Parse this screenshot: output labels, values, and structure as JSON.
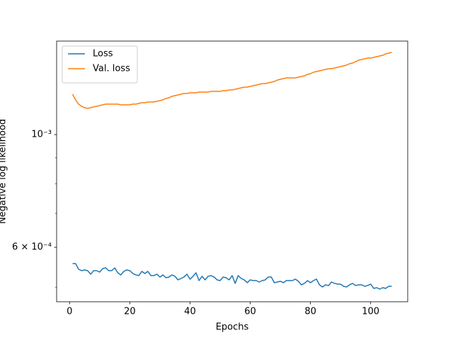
{
  "chart_data": {
    "type": "line",
    "xlabel": "Epochs",
    "ylabel": "Negative log likelihood",
    "x": [
      1,
      2,
      3,
      4,
      5,
      6,
      7,
      8,
      9,
      10,
      11,
      12,
      13,
      14,
      15,
      16,
      17,
      18,
      19,
      20,
      21,
      22,
      23,
      24,
      25,
      26,
      27,
      28,
      29,
      30,
      31,
      32,
      33,
      34,
      35,
      36,
      37,
      38,
      39,
      40,
      41,
      42,
      43,
      44,
      45,
      46,
      47,
      48,
      49,
      50,
      51,
      52,
      53,
      54,
      55,
      56,
      57,
      58,
      59,
      60,
      61,
      62,
      63,
      64,
      65,
      66,
      67,
      68,
      69,
      70,
      71,
      72,
      73,
      74,
      75,
      76,
      77,
      78,
      79,
      80,
      81,
      82,
      83,
      84,
      85,
      86,
      87,
      88,
      89,
      90,
      91,
      92,
      93,
      94,
      95,
      96,
      97,
      98,
      99,
      100,
      101,
      102,
      103,
      104,
      105,
      106,
      107
    ],
    "series": [
      {
        "name": "Loss",
        "color": "#1f77b4",
        "values": [
          0.0005573,
          0.0005573,
          0.0005431,
          0.0005396,
          0.0005414,
          0.0005396,
          0.0005311,
          0.0005396,
          0.0005396,
          0.0005362,
          0.0005448,
          0.0005466,
          0.0005396,
          0.0005396,
          0.0005466,
          0.0005345,
          0.0005294,
          0.0005379,
          0.0005414,
          0.0005396,
          0.0005328,
          0.0005294,
          0.0005277,
          0.0005379,
          0.0005328,
          0.0005379,
          0.0005277,
          0.0005277,
          0.0005311,
          0.0005243,
          0.0005294,
          0.0005226,
          0.0005243,
          0.0005294,
          0.000526,
          0.0005176,
          0.0005209,
          0.0005243,
          0.0005311,
          0.0005193,
          0.000526,
          0.0005345,
          0.0005159,
          0.000526,
          0.0005176,
          0.000526,
          0.0005277,
          0.0005243,
          0.0005176,
          0.0005159,
          0.0005243,
          0.0005226,
          0.0005176,
          0.0005277,
          0.0005094,
          0.0005277,
          0.0005209,
          0.0005176,
          0.000511,
          0.0005176,
          0.0005159,
          0.0005159,
          0.0005126,
          0.0005159,
          0.0005176,
          0.0005243,
          0.0005243,
          0.000511,
          0.0005126,
          0.0005143,
          0.000511,
          0.0005159,
          0.0005159,
          0.0005159,
          0.0005193,
          0.0005143,
          0.0005061,
          0.0005094,
          0.0005159,
          0.000511,
          0.0005159,
          0.0005193,
          0.0005061,
          0.0005012,
          0.0005061,
          0.0005045,
          0.0005126,
          0.0005094,
          0.0005077,
          0.0005077,
          0.0005028,
          0.0005012,
          0.0005061,
          0.0005094,
          0.0005045,
          0.0005061,
          0.0005061,
          0.0005028,
          0.0005045,
          0.0005077,
          0.000498,
          0.0004996,
          0.0004964,
          0.0004996,
          0.000498,
          0.0005028,
          0.0005028
        ]
      },
      {
        "name": "Val. loss",
        "color": "#ff7f0e",
        "values": [
          0.0012009,
          0.0011705,
          0.0011481,
          0.0011371,
          0.0011298,
          0.0011262,
          0.0011298,
          0.0011335,
          0.0011371,
          0.0011408,
          0.0011444,
          0.0011481,
          0.0011481,
          0.0011481,
          0.0011481,
          0.0011481,
          0.0011444,
          0.0011444,
          0.0011444,
          0.0011444,
          0.0011481,
          0.0011481,
          0.0011518,
          0.0011555,
          0.0011555,
          0.0011593,
          0.0011593,
          0.0011593,
          0.001163,
          0.0011667,
          0.0011705,
          0.001178,
          0.0011818,
          0.0011894,
          0.0011933,
          0.0011971,
          0.0012009,
          0.0012048,
          0.0012048,
          0.0012087,
          0.0012087,
          0.0012087,
          0.0012125,
          0.0012125,
          0.0012125,
          0.0012125,
          0.0012164,
          0.0012164,
          0.0012164,
          0.0012164,
          0.0012203,
          0.0012203,
          0.0012243,
          0.0012243,
          0.0012282,
          0.0012322,
          0.0012361,
          0.0012401,
          0.0012401,
          0.0012441,
          0.0012481,
          0.0012521,
          0.0012562,
          0.0012602,
          0.0012602,
          0.0012643,
          0.0012683,
          0.0012724,
          0.0012806,
          0.0012847,
          0.0012888,
          0.001293,
          0.001293,
          0.001293,
          0.001293,
          0.0012972,
          0.0013013,
          0.0013055,
          0.0013139,
          0.0013181,
          0.0013267,
          0.0013309,
          0.0013352,
          0.0013395,
          0.0013438,
          0.0013481,
          0.0013481,
          0.0013525,
          0.0013568,
          0.0013612,
          0.0013656,
          0.00137,
          0.0013788,
          0.0013832,
          0.0013921,
          0.0014012,
          0.0014057,
          0.0014102,
          0.0014147,
          0.0014147,
          0.0014193,
          0.0014238,
          0.0014284,
          0.0014329,
          0.0014422,
          0.0014469,
          0.0014515
        ]
      }
    ],
    "xlim": [
      -4.3,
      112.3
    ],
    "xticks": [
      0,
      20,
      40,
      60,
      80,
      100
    ],
    "ylim": [
      0.0004687,
      0.001528
    ],
    "yscale": "log",
    "yticks": [
      {
        "value": 0.0006,
        "label": "6 × 10⁻⁴"
      },
      {
        "value": 0.001,
        "label": "10⁻³"
      }
    ],
    "yminorticks": [
      0.0005,
      0.0007,
      0.0008,
      0.0009
    ],
    "legend": "upper left"
  }
}
